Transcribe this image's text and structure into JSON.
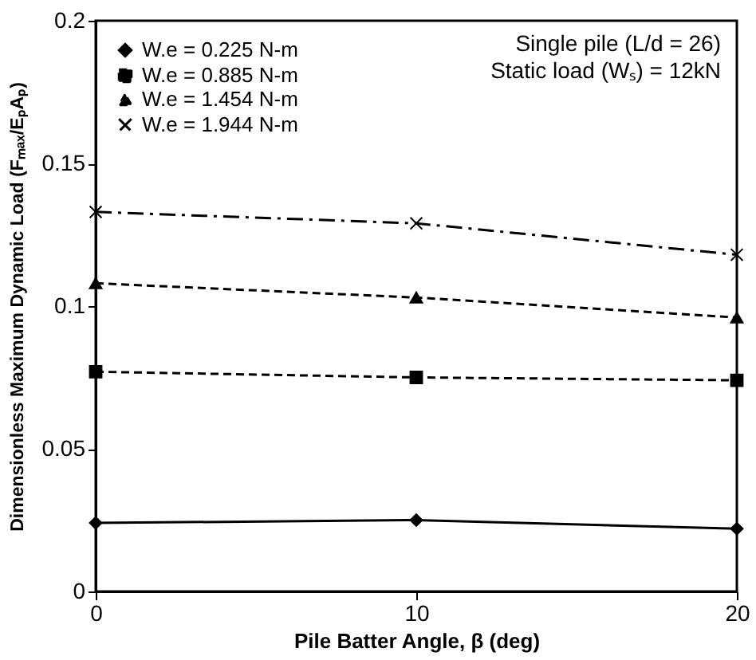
{
  "chart_data": {
    "type": "line",
    "xlabel": "Pile Batter Angle, β (deg)",
    "ylabel": "Dimensionless Maximum Dynamic Load (Fₘₐₓ/EₚAₚ)",
    "x": [
      0,
      10,
      20
    ],
    "xlim": [
      0,
      20
    ],
    "xticks": [
      0,
      10,
      20
    ],
    "ylim": [
      0,
      0.2
    ],
    "yticks": [
      0,
      0.05,
      0.1,
      0.15,
      0.2
    ],
    "grid": false,
    "legend": "top left",
    "annotations": [
      "Single pile (L/d = 26)",
      "Static load (Wₛ) = 12kN"
    ],
    "series": [
      {
        "name": "W.e = 0.225 N-m",
        "color": "#000000",
        "marker": "diamond",
        "line_style": "solid",
        "values": [
          0.024,
          0.025,
          0.022
        ]
      },
      {
        "name": "W.e = 0.885 N-m",
        "color": "#000000",
        "marker": "square",
        "line_style": "dashed",
        "values": [
          0.077,
          0.075,
          0.074
        ]
      },
      {
        "name": "W.e = 1.454 N-m",
        "color": "#000000",
        "marker": "triangle",
        "line_style": "dashed",
        "values": [
          0.108,
          0.103,
          0.096
        ]
      },
      {
        "name": "W.e = 1.944 N-m",
        "color": "#000000",
        "marker": "cross",
        "line_style": "dashdot",
        "values": [
          0.133,
          0.129,
          0.118
        ]
      }
    ]
  }
}
